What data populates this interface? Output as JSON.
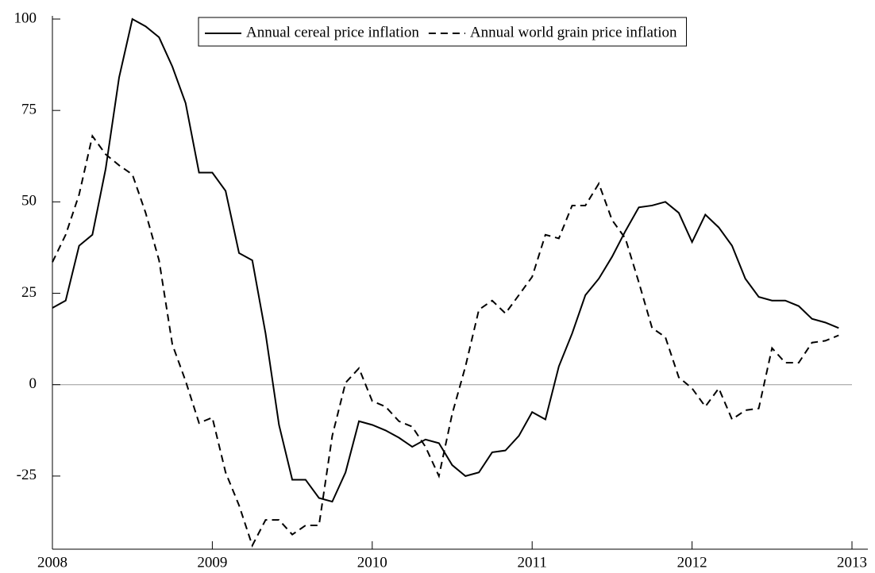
{
  "chart_data": {
    "type": "line",
    "x": [
      2008,
      2008.083,
      2008.167,
      2008.25,
      2008.333,
      2008.417,
      2008.5,
      2008.583,
      2008.667,
      2008.75,
      2008.833,
      2008.917,
      2009,
      2009.083,
      2009.167,
      2009.25,
      2009.333,
      2009.417,
      2009.5,
      2009.583,
      2009.667,
      2009.75,
      2009.833,
      2009.917,
      2010,
      2010.083,
      2010.167,
      2010.25,
      2010.333,
      2010.417,
      2010.5,
      2010.583,
      2010.667,
      2010.75,
      2010.833,
      2010.917,
      2011,
      2011.083,
      2011.167,
      2011.25,
      2011.333,
      2011.417,
      2011.5,
      2011.583,
      2011.667,
      2011.75,
      2011.833,
      2011.917,
      2012,
      2012.083,
      2012.167,
      2012.25,
      2012.333,
      2012.417,
      2012.5,
      2012.583,
      2012.667,
      2012.75,
      2012.833,
      2012.917
    ],
    "series": [
      {
        "name": "Annual cereal price inflation",
        "color": "#000000",
        "dash": "solid",
        "values": [
          21,
          23,
          38,
          41,
          59,
          84,
          100,
          98,
          95,
          87,
          77,
          58,
          58,
          53,
          36,
          34,
          14,
          -11,
          -26,
          -26,
          -31,
          -32,
          -24,
          -10,
          -11,
          -12.5,
          -14.5,
          -17,
          -15,
          -16,
          -22,
          -25,
          -24,
          -18.5,
          -18,
          -14,
          -7.5,
          -9.5,
          5,
          14,
          24.5,
          29,
          35,
          42,
          48.5,
          49,
          50,
          47,
          39,
          46.5,
          43,
          38,
          29,
          24,
          23,
          23,
          21.5,
          18,
          17,
          15.5
        ]
      },
      {
        "name": "Annual world grain price inflation",
        "color": "#000000",
        "dash": "dashed",
        "values": [
          33.5,
          41,
          52,
          68,
          63,
          60,
          57.5,
          47,
          34,
          11,
          1,
          -10.5,
          -9,
          -24,
          -33,
          -44,
          -37,
          -37,
          -41,
          -38.5,
          -38.5,
          -14,
          0.5,
          4.5,
          -4.5,
          -6,
          -10,
          -11.5,
          -17,
          -25,
          -8,
          5,
          20.5,
          23,
          19.5,
          24.5,
          29.5,
          41,
          40,
          49,
          49,
          55,
          45,
          40,
          28,
          15.5,
          13,
          2,
          -1,
          -6,
          -1,
          -9.5,
          -7,
          -6.5,
          10,
          6,
          6,
          11.5,
          12,
          13.5
        ]
      }
    ],
    "xlim": [
      2008,
      2013
    ],
    "xticks": [
      2008,
      2009,
      2010,
      2011,
      2012,
      2013
    ],
    "ylim": [
      -45,
      100
    ],
    "yticks": [
      -25,
      0,
      25,
      50,
      75,
      100
    ],
    "zero_line": true,
    "legend": "top"
  }
}
